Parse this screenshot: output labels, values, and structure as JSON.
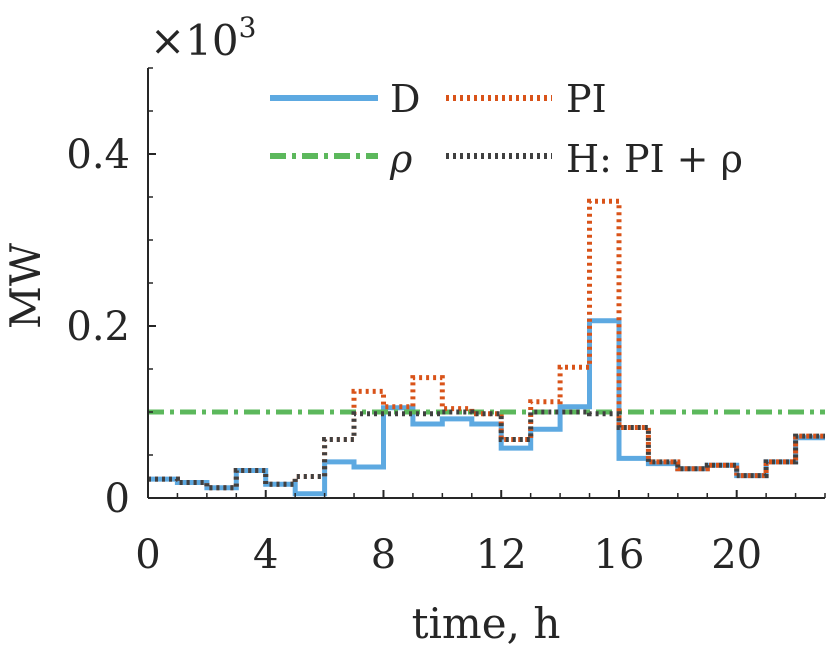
{
  "chart_data": {
    "type": "line",
    "step": true,
    "xlabel": "time, h",
    "ylabel": "MW",
    "y_multiplier_label": "×10",
    "y_multiplier_exponent": "3",
    "xlim": [
      0,
      23
    ],
    "ylim": [
      0,
      0.5
    ],
    "xticks": [
      0,
      4,
      8,
      12,
      16,
      20
    ],
    "xtick_labels": [
      "0",
      "4",
      "8",
      "12",
      "16",
      "20"
    ],
    "yticks": [
      0,
      0.2,
      0.4
    ],
    "ytick_labels": [
      "0",
      "0.2",
      "0.4"
    ],
    "legend_position": "top",
    "series": [
      {
        "name": "D",
        "color": "#5DA9E1",
        "style": "solid",
        "x": [
          0,
          1,
          2,
          3,
          4,
          5,
          6,
          7,
          8,
          9,
          10,
          11,
          12,
          13,
          14,
          15,
          16,
          17,
          18,
          19,
          20,
          21,
          22
        ],
        "values": [
          0.022,
          0.018,
          0.012,
          0.032,
          0.016,
          0.005,
          0.042,
          0.036,
          0.105,
          0.086,
          0.092,
          0.086,
          0.058,
          0.08,
          0.106,
          0.206,
          0.046,
          0.04,
          0.034,
          0.038,
          0.026,
          0.042,
          0.07
        ]
      },
      {
        "name": "PI",
        "color": "#D95319",
        "style": "dotted",
        "x": [
          0,
          1,
          2,
          3,
          4,
          5,
          6,
          7,
          8,
          9,
          10,
          11,
          12,
          13,
          14,
          15,
          16,
          17,
          18,
          19,
          20,
          21,
          22
        ],
        "values": [
          0.022,
          0.018,
          0.012,
          0.032,
          0.016,
          0.025,
          0.068,
          0.124,
          0.106,
          0.14,
          0.104,
          0.098,
          0.068,
          0.112,
          0.152,
          0.345,
          0.082,
          0.042,
          0.034,
          0.038,
          0.026,
          0.042,
          0.072
        ]
      },
      {
        "name": "ρ",
        "color": "#5CB85C",
        "style": "dashdot",
        "x": [
          0,
          1,
          2,
          3,
          4,
          5,
          6,
          7,
          8,
          9,
          10,
          11,
          12,
          13,
          14,
          15,
          16,
          17,
          18,
          19,
          20,
          21,
          22
        ],
        "values": [
          0.1,
          0.1,
          0.1,
          0.1,
          0.1,
          0.1,
          0.1,
          0.1,
          0.1,
          0.1,
          0.1,
          0.1,
          0.1,
          0.1,
          0.1,
          0.1,
          0.1,
          0.1,
          0.1,
          0.1,
          0.1,
          0.1,
          0.1
        ]
      },
      {
        "name": "H: PI + ρ",
        "color": "#404040",
        "style": "dotted",
        "x": [
          0,
          1,
          2,
          3,
          4,
          5,
          6,
          7,
          8,
          9,
          10,
          11,
          12,
          13,
          14,
          15,
          16,
          17,
          18,
          19,
          20,
          21,
          22
        ],
        "values": [
          0.022,
          0.018,
          0.012,
          0.032,
          0.016,
          0.025,
          0.068,
          0.098,
          0.098,
          0.098,
          0.1,
          0.098,
          0.068,
          0.1,
          0.1,
          0.098,
          0.082,
          0.042,
          0.034,
          0.038,
          0.026,
          0.042,
          0.072
        ]
      }
    ]
  }
}
